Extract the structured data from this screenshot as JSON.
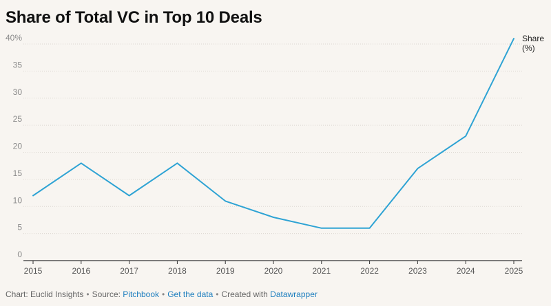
{
  "title": "Share of Total VC in Top 10 Deals",
  "footer": {
    "chart_label": "Chart: Euclid Insights",
    "source_label": "Source:",
    "source_name": "Pitchbook",
    "get_data": "Get the data",
    "created_label": "Created with",
    "created_tool": "Datawrapper"
  },
  "colors": {
    "line": "#2ea3d4",
    "grid": "#dcd7d1",
    "axis": "#333333",
    "tick_text": "#8a8a8a",
    "link": "#1f7fbf"
  },
  "chart_data": {
    "type": "line",
    "title": "Share of Total VC in Top 10 Deals",
    "x": [
      "2015",
      "2016",
      "2017",
      "2018",
      "2019",
      "2020",
      "2021",
      "2022",
      "2023",
      "2024",
      "2025"
    ],
    "series": [
      {
        "name": "Share (%)",
        "label_lines": [
          "Share",
          "(%)"
        ],
        "values": [
          12,
          18,
          12,
          18,
          11,
          8,
          6,
          6,
          17,
          23,
          41
        ]
      }
    ],
    "y_ticks": [
      "0",
      "5",
      "10",
      "15",
      "20",
      "25",
      "30",
      "35",
      "40%"
    ],
    "ylim": [
      0,
      40
    ],
    "grid": true,
    "xlabel": "",
    "ylabel": ""
  }
}
